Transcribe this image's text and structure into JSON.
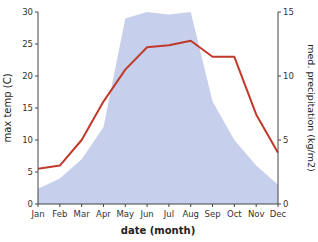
{
  "chart_data": {
    "type": "line",
    "xlabel": "date (month)",
    "ylabel": "max temp (C)",
    "y2label": "med. precipitation (kg/m2)",
    "categories": [
      "Jan",
      "Feb",
      "Mar",
      "Apr",
      "May",
      "Jun",
      "Jul",
      "Aug",
      "Sep",
      "Oct",
      "Nov",
      "Dec"
    ],
    "series": [
      {
        "type": "area",
        "axis": "y2",
        "color": "#b8c4e8",
        "values": [
          1.2,
          2.0,
          3.5,
          6.0,
          14.5,
          15.0,
          14.8,
          15.0,
          8.0,
          5.0,
          3.0,
          1.5
        ]
      },
      {
        "type": "line",
        "color": "#c0392b",
        "values": [
          5.5,
          6.0,
          10.0,
          16.0,
          21.0,
          24.5,
          24.8,
          25.5,
          23.0,
          23.0,
          14.0,
          8.0
        ]
      }
    ],
    "ylim": [
      0,
      30
    ],
    "yticks": [
      0,
      5,
      10,
      15,
      20,
      25,
      30
    ],
    "y2lim": [
      0,
      15
    ],
    "y2ticks": [
      0,
      5,
      10,
      15
    ],
    "grid": false
  }
}
